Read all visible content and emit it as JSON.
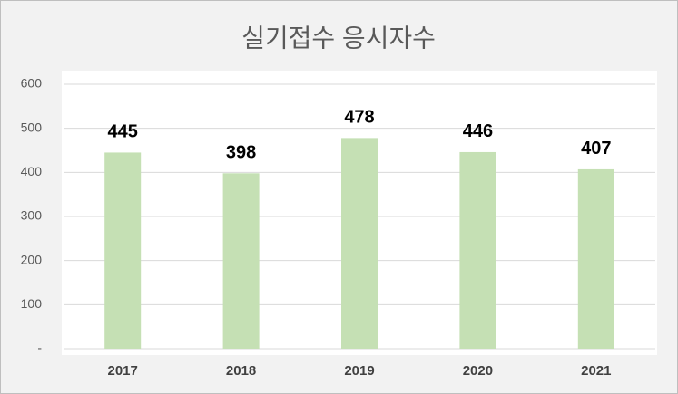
{
  "chart_data": {
    "type": "bar",
    "title": "실기접수 응시자수",
    "categories": [
      "2017",
      "2018",
      "2019",
      "2020",
      "2021"
    ],
    "values": [
      445,
      398,
      478,
      446,
      407
    ],
    "color": "#c5e0b4",
    "ylim": [
      0,
      600
    ],
    "yticks": [
      {
        "value": 0,
        "label": "-"
      },
      100,
      200,
      300,
      400,
      500,
      600
    ],
    "grid": true
  }
}
